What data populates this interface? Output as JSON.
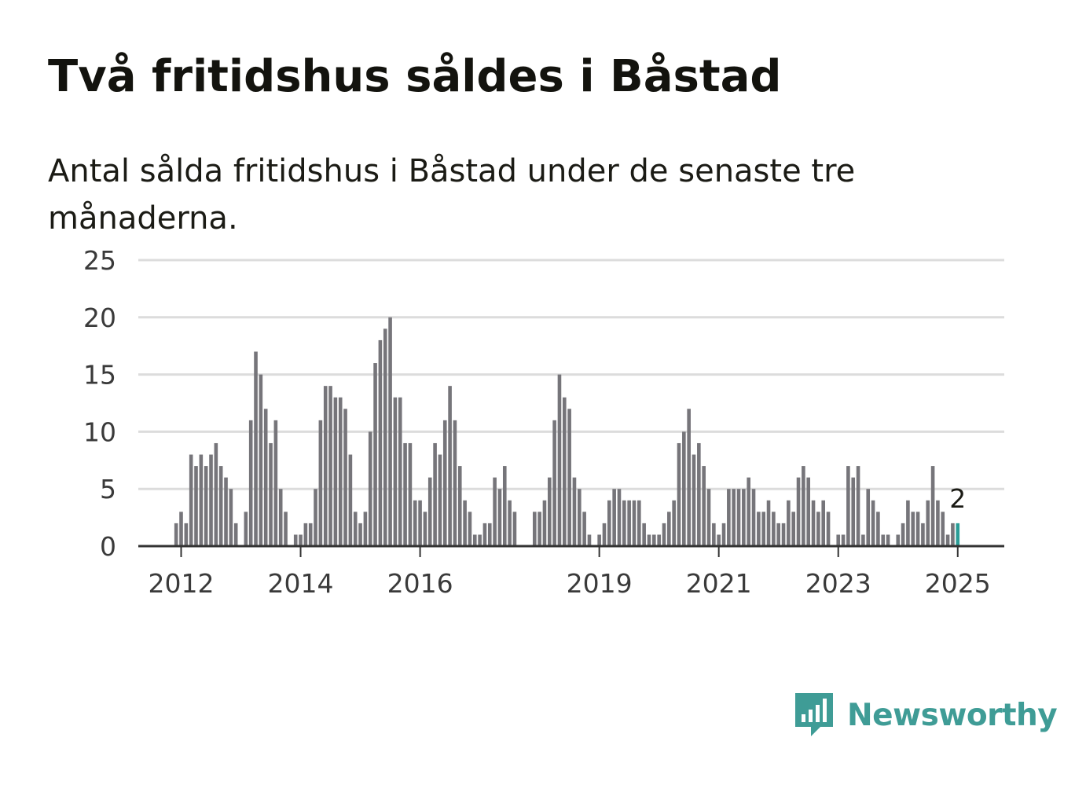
{
  "title": "Två fritidshus såldes i Båstad",
  "subtitle": "Antal sålda fritidshus i Båstad under de senaste tre månaderna.",
  "brand": {
    "name": "Newsworthy",
    "icon": "newsworthy-logo-icon",
    "color": "#3f9c96"
  },
  "colors": {
    "bar": "#76757a",
    "highlight": "#2a9d97",
    "grid": "#dcdcdc",
    "axis": "#333333"
  },
  "chart_data": {
    "type": "bar",
    "ylim": [
      0,
      25
    ],
    "y_ticks": [
      0,
      5,
      10,
      15,
      20,
      25
    ],
    "x_ticks": [
      "2012",
      "2014",
      "2016",
      "2019",
      "2021",
      "2023",
      "2025"
    ],
    "grid": true,
    "legend": "none",
    "annotation": {
      "text": "2",
      "target": "last-bar"
    },
    "start": "2011-12",
    "end": "2025-01",
    "values": [
      2,
      3,
      2,
      8,
      7,
      8,
      7,
      8,
      9,
      7,
      6,
      5,
      2,
      null,
      3,
      11,
      17,
      15,
      12,
      9,
      11,
      5,
      3,
      null,
      1,
      1,
      2,
      2,
      5,
      11,
      14,
      14,
      13,
      13,
      12,
      8,
      3,
      2,
      3,
      10,
      16,
      18,
      19,
      20,
      13,
      13,
      9,
      9,
      4,
      4,
      3,
      6,
      9,
      8,
      11,
      14,
      11,
      7,
      4,
      3,
      1,
      1,
      2,
      2,
      6,
      5,
      7,
      4,
      3,
      null,
      null,
      null,
      3,
      3,
      4,
      6,
      11,
      15,
      13,
      12,
      6,
      5,
      3,
      1,
      null,
      1,
      2,
      4,
      5,
      5,
      4,
      4,
      4,
      4,
      2,
      1,
      1,
      1,
      2,
      3,
      4,
      9,
      10,
      12,
      8,
      9,
      7,
      5,
      2,
      1,
      2,
      5,
      5,
      5,
      5,
      6,
      5,
      3,
      3,
      4,
      3,
      2,
      2,
      4,
      3,
      6,
      7,
      6,
      4,
      3,
      4,
      3,
      null,
      1,
      1,
      7,
      6,
      7,
      1,
      5,
      4,
      3,
      1,
      1,
      null,
      1,
      2,
      4,
      3,
      3,
      2,
      4,
      7,
      4,
      3,
      1,
      2,
      2
    ],
    "highlight_last": 1
  }
}
